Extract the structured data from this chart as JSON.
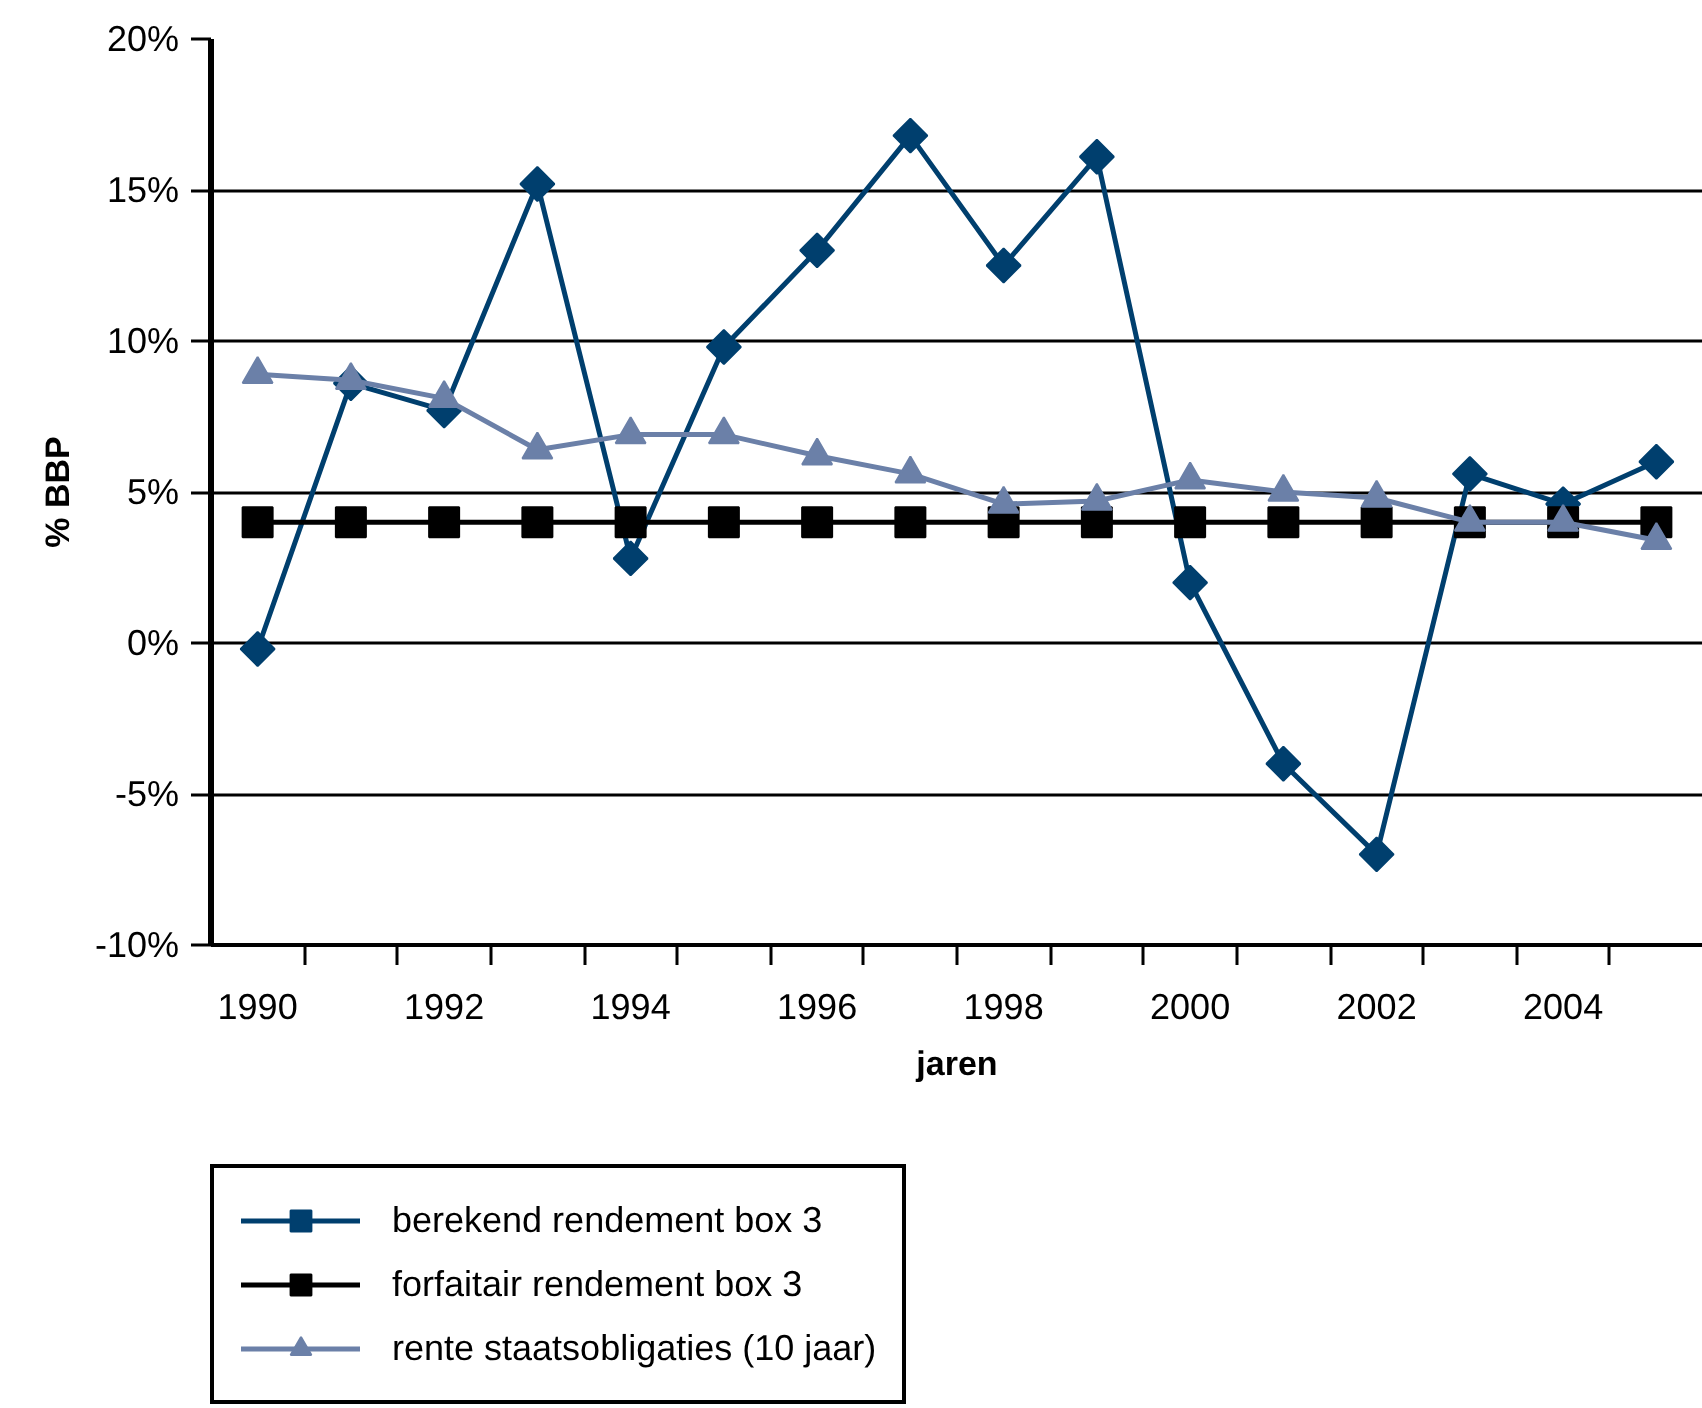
{
  "chart_data": {
    "type": "line",
    "xlabel": "jaren",
    "ylabel": "% BBP",
    "categories": [
      "1990",
      null,
      "1992",
      null,
      "1994",
      null,
      "1996",
      null,
      "1998",
      null,
      "2000",
      null,
      "2002",
      null,
      "2004",
      null
    ],
    "series": [
      {
        "name": "berekend rendement box 3",
        "color": "#003f6e",
        "marker": "diamond",
        "values": [
          -0.2,
          8.6,
          7.7,
          15.2,
          2.8,
          9.8,
          13.0,
          16.8,
          12.5,
          16.1,
          2.0,
          -4.0,
          -7.0,
          5.6,
          4.6,
          6.0
        ]
      },
      {
        "name": "forfaitair rendement box 3",
        "color": "#000000",
        "marker": "square",
        "values": [
          4,
          4,
          4,
          4,
          4,
          4,
          4,
          4,
          4,
          4,
          4,
          4,
          4,
          4,
          4,
          4
        ]
      },
      {
        "name": "rente staatsobligaties (10 jaar)",
        "color": "#6b80a8",
        "marker": "triangle",
        "values": [
          8.9,
          8.7,
          8.1,
          6.4,
          6.9,
          6.9,
          6.2,
          5.6,
          4.6,
          4.7,
          5.4,
          5.0,
          4.8,
          4.0,
          4.0,
          3.4
        ]
      }
    ],
    "ylim": [
      -10,
      20
    ],
    "yticks": [
      {
        "value": -10,
        "label": "-10%"
      },
      {
        "value": -5,
        "label": "-5%"
      },
      {
        "value": 0,
        "label": "0%"
      },
      {
        "value": 5,
        "label": "5%"
      },
      {
        "value": 10,
        "label": "10%"
      },
      {
        "value": 15,
        "label": "15%"
      },
      {
        "value": 20,
        "label": "20%"
      }
    ],
    "grid": "y",
    "legend": "bottom",
    "line_style": "solid"
  }
}
